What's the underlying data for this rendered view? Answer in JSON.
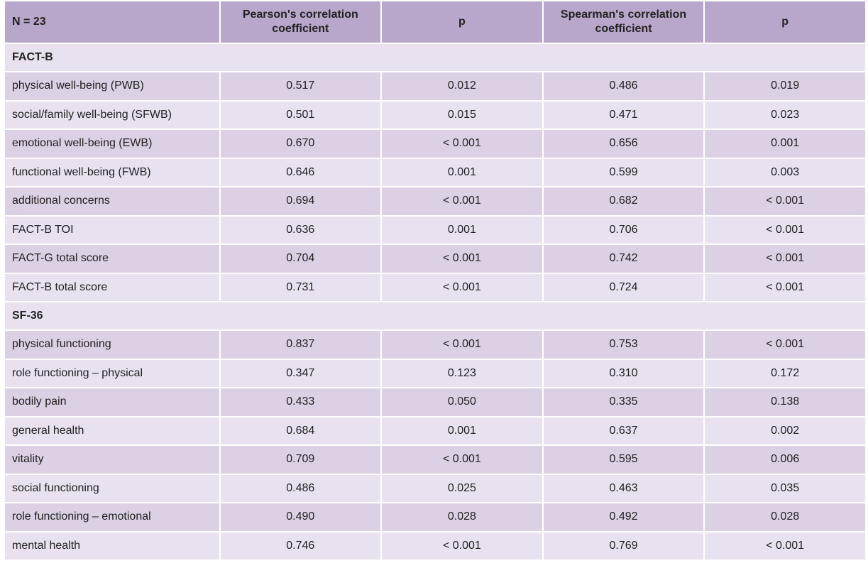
{
  "header": {
    "n_label": "N = 23",
    "pearson_line1": "Pearson's correlation",
    "pearson_line2": "coefficient",
    "p1": "p",
    "spearman_line1": "Spearman's correlation",
    "spearman_line2": "coefficient",
    "p2": "p"
  },
  "sections": [
    {
      "title": "FACT-B",
      "rows": [
        {
          "label": "physical well-being (PWB)",
          "pearson": "0.517",
          "p_pearson": "0.012",
          "spearman": "0.486",
          "p_spearman": "0.019"
        },
        {
          "label": "social/family well-being (SFWB)",
          "pearson": "0.501",
          "p_pearson": "0.015",
          "spearman": "0.471",
          "p_spearman": "0.023"
        },
        {
          "label": "emotional well-being (EWB)",
          "pearson": "0.670",
          "p_pearson": "< 0.001",
          "spearman": "0.656",
          "p_spearman": "0.001"
        },
        {
          "label": "functional well-being (FWB)",
          "pearson": "0.646",
          "p_pearson": "0.001",
          "spearman": "0.599",
          "p_spearman": "0.003"
        },
        {
          "label": "additional concerns",
          "pearson": "0.694",
          "p_pearson": "< 0.001",
          "spearman": "0.682",
          "p_spearman": "< 0.001"
        },
        {
          "label": "FACT-B TOI",
          "pearson": "0.636",
          "p_pearson": "0.001",
          "spearman": "0.706",
          "p_spearman": "< 0.001"
        },
        {
          "label": "FACT-G total score",
          "pearson": "0.704",
          "p_pearson": "< 0.001",
          "spearman": "0.742",
          "p_spearman": "< 0.001"
        },
        {
          "label": "FACT-B total score",
          "pearson": "0.731",
          "p_pearson": "< 0.001",
          "spearman": "0.724",
          "p_spearman": "< 0.001"
        }
      ]
    },
    {
      "title": "SF-36",
      "rows": [
        {
          "label": "physical functioning",
          "pearson": "0.837",
          "p_pearson": "< 0.001",
          "spearman": "0.753",
          "p_spearman": "< 0.001"
        },
        {
          "label": "role functioning – physical",
          "pearson": "0.347",
          "p_pearson": "0.123",
          "spearman": "0.310",
          "p_spearman": "0.172"
        },
        {
          "label": "bodily pain",
          "pearson": "0.433",
          "p_pearson": "0.050",
          "spearman": "0.335",
          "p_spearman": "0.138"
        },
        {
          "label": "general health",
          "pearson": "0.684",
          "p_pearson": "0.001",
          "spearman": "0.637",
          "p_spearman": "0.002"
        },
        {
          "label": "vitality",
          "pearson": "0.709",
          "p_pearson": "< 0.001",
          "spearman": "0.595",
          "p_spearman": "0.006"
        },
        {
          "label": "social functioning",
          "pearson": "0.486",
          "p_pearson": "0.025",
          "spearman": "0.463",
          "p_spearman": "0.035"
        },
        {
          "label": "role functioning – emotional",
          "pearson": "0.490",
          "p_pearson": "0.028",
          "spearman": "0.492",
          "p_spearman": "0.028"
        },
        {
          "label": "mental health",
          "pearson": "0.746",
          "p_pearson": "< 0.001",
          "spearman": "0.769",
          "p_spearman": "< 0.001"
        }
      ]
    }
  ],
  "colors": {
    "header_bg": "#b9a6cb",
    "row_dark": "#dcd0e4",
    "row_light": "#e9e1ef"
  }
}
